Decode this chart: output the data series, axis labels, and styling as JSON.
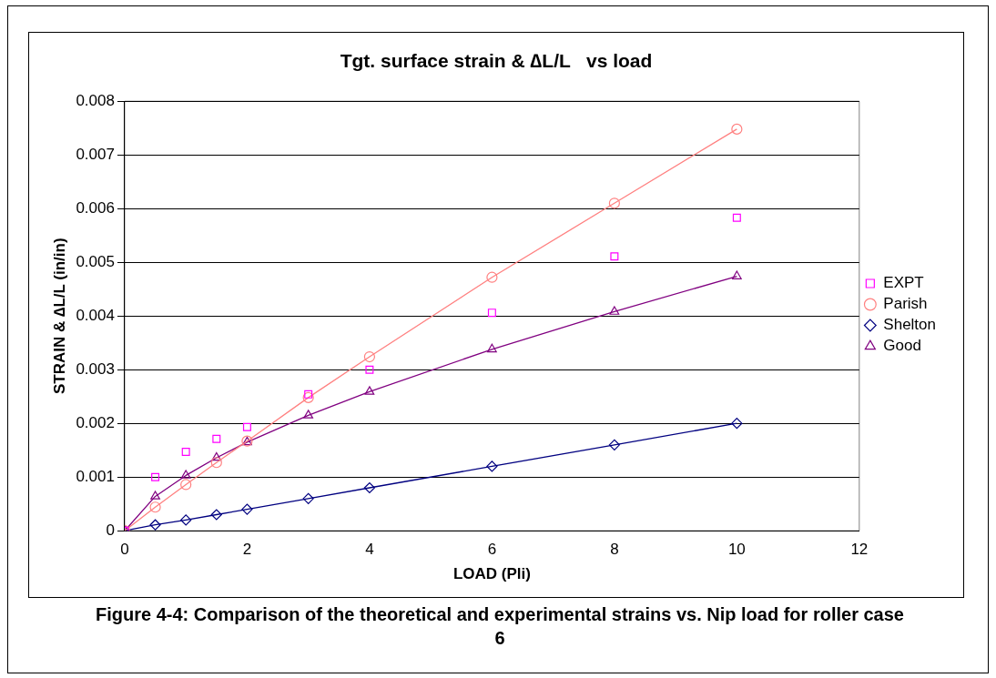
{
  "chart_data": {
    "type": "line",
    "title": "Tgt. surface strain & ∆L/L   vs load",
    "xlabel": "LOAD (Pli)",
    "ylabel": "STRAIN & ∆L/L (in/in)",
    "x": [
      0,
      0.5,
      1,
      1.5,
      2,
      3,
      4,
      6,
      8,
      10
    ],
    "series": [
      {
        "name": "EXPT",
        "type": "scatter",
        "marker": "square",
        "color": "#ff00ff",
        "values": [
          0,
          0.001,
          0.00147,
          0.00171,
          0.00193,
          0.00254,
          0.003,
          0.00406,
          0.00511,
          0.00583
        ]
      },
      {
        "name": "Parish",
        "type": "line",
        "marker": "circle",
        "color": "#ff8080",
        "values": [
          0,
          0.00044,
          0.00086,
          0.00127,
          0.00167,
          0.00248,
          0.00324,
          0.00472,
          0.0061,
          0.00748
        ]
      },
      {
        "name": "Shelton",
        "type": "line",
        "marker": "diamond",
        "color": "#000080",
        "values": [
          0,
          0.00011,
          0.0002,
          0.0003,
          0.0004,
          0.0006,
          0.0008,
          0.0012,
          0.0016,
          0.002
        ]
      },
      {
        "name": "Good",
        "type": "line",
        "marker": "triangle",
        "color": "#800080",
        "values": [
          0,
          0.00064,
          0.00103,
          0.00136,
          0.00165,
          0.00215,
          0.00259,
          0.00338,
          0.00408,
          0.00474
        ]
      }
    ],
    "xlim": [
      0,
      12
    ],
    "xticks": [
      0,
      2,
      4,
      6,
      8,
      10,
      12
    ],
    "ylim": [
      0,
      0.008
    ],
    "yticks": [
      0,
      0.001,
      0.002,
      0.003,
      0.004,
      0.005,
      0.006,
      0.007,
      0.008
    ],
    "grid": "y",
    "legend": "right",
    "annotations": [
      "Figure 4-4: Comparison of the theoretical and experimental strains vs. Nip load for roller case 6"
    ]
  }
}
